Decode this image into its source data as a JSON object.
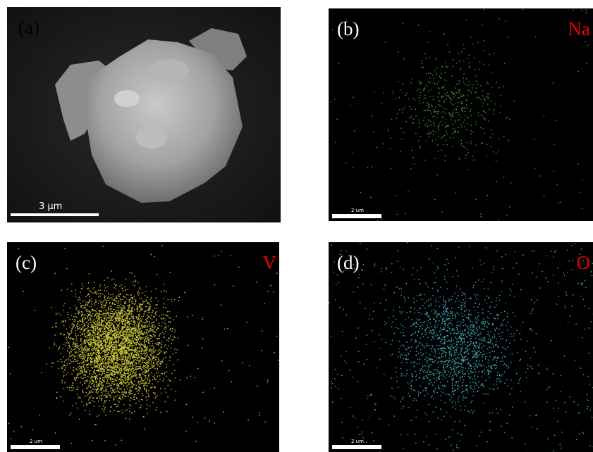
{
  "panels": [
    {
      "label": "(a)",
      "scale_bar": "3 μm"
    },
    {
      "label": "(b)",
      "element": "Na",
      "scale_bar": "2 um"
    },
    {
      "label": "(c)",
      "element": "V",
      "scale_bar": "2 um"
    },
    {
      "label": "(d)",
      "element": "O",
      "scale_bar": "2 um"
    }
  ]
}
